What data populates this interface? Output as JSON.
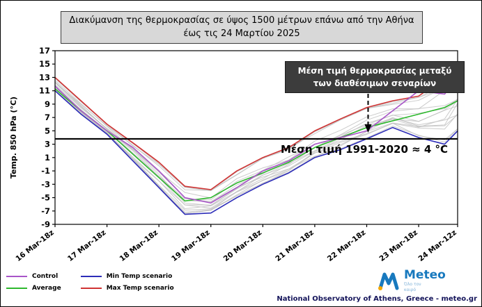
{
  "title_box": {
    "line1": "Διακύμανση της θερμοκρασίας σε ύψος 1500 μέτρων επάνω από την Αθήνα",
    "line2": "έως τις 24 Μαρτίου 2025"
  },
  "annotation_box": {
    "line1": "Μέση τιμή θερμοκρασίας μεταξύ",
    "line2": "των διαθέσιμων σεναρίων"
  },
  "footer": {
    "credit": "National Observatory of Athens, Greece - meteo.gr"
  },
  "logo": {
    "name": "Meteo",
    "tagline1": "Όλο τον",
    "tagline2": "καιρό"
  },
  "chart_data": {
    "type": "line",
    "title": "Διακύμανση της θερμοκρασίας σε ύψος 1500 μέτρων επάνω από την Αθήνα έως τις 24 Μαρτίου 2025",
    "ylabel": "Temp. 850 hPa (°C)",
    "ylim": [
      -9,
      17
    ],
    "yticks": [
      17,
      15,
      13,
      11,
      9,
      7,
      5,
      3,
      1,
      -1,
      -3,
      -5,
      -7,
      -9
    ],
    "x_hours": [
      0,
      12,
      24,
      36,
      48,
      60,
      72,
      84,
      96,
      108,
      120,
      132,
      144,
      156,
      168,
      180,
      186
    ],
    "xticks": [
      {
        "label": "16 Mar-18z",
        "hour": 0
      },
      {
        "label": "17 Mar-18z",
        "hour": 24
      },
      {
        "label": "18 Mar-18z",
        "hour": 48
      },
      {
        "label": "19 Mar-18z",
        "hour": 72
      },
      {
        "label": "20 Mar-18z",
        "hour": 96
      },
      {
        "label": "21 Mar-18z",
        "hour": 120
      },
      {
        "label": "22 Mar-18z",
        "hour": 144
      },
      {
        "label": "23 Mar-18z",
        "hour": 168
      },
      {
        "label": "24 Mar-12z",
        "hour": 186
      }
    ],
    "series": [
      {
        "name": "Control",
        "color": "#a855c8",
        "values": [
          11.7,
          8.0,
          5.0,
          2.5,
          -1.0,
          -5.0,
          -5.8,
          -3.5,
          -1.0,
          0.5,
          3.0,
          4.0,
          5.0,
          8.0,
          11.0,
          10.5,
          13.0
        ]
      },
      {
        "name": "Average",
        "color": "#2db82d",
        "values": [
          11.3,
          8.0,
          5.0,
          1.5,
          -2.0,
          -5.5,
          -5.0,
          -2.8,
          -1.3,
          0.3,
          2.5,
          4.0,
          5.5,
          6.5,
          7.5,
          8.5,
          9.5
        ]
      },
      {
        "name": "Min Temp scenario",
        "color": "#2c2cb8",
        "values": [
          11.0,
          7.5,
          4.5,
          0.5,
          -3.5,
          -7.5,
          -7.3,
          -5.0,
          -3.0,
          -1.3,
          1.0,
          2.2,
          3.8,
          5.5,
          4.0,
          3.0,
          5.0
        ]
      },
      {
        "name": "Max Temp scenario",
        "color": "#d03232",
        "values": [
          13.0,
          9.5,
          6.0,
          3.2,
          0.3,
          -3.3,
          -3.8,
          -1.0,
          1.0,
          2.5,
          5.0,
          6.8,
          8.5,
          9.5,
          10.2,
          13.0,
          15.0
        ]
      }
    ],
    "ensemble": {
      "count": 15,
      "color": "#c2c2c2",
      "seed": 123
    },
    "mean_line": {
      "value": 3.8,
      "label": "Μέση τιμή 1991-2020 ≈ 4 °C"
    }
  }
}
